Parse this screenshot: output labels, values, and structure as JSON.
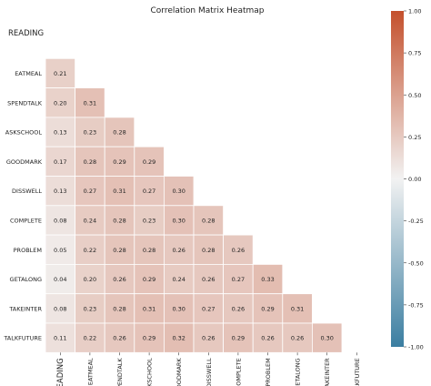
{
  "chart_data": {
    "type": "heatmap",
    "title": "Correlation Matrix Heatmap",
    "row_labels": [
      "READING",
      "EATMEAL",
      "SPENDTALK",
      "ASKSCHOOL",
      "GOODMARK",
      "DISSWELL",
      "COMPLETE",
      "PROBLEM",
      "GETALONG",
      "TAKEINTER",
      "TALKFUTURE"
    ],
    "col_labels": [
      "READING",
      "EATMEAL",
      "SPENDTALK",
      "ASKSCHOOL",
      "GOODMARK",
      "DISSWELL",
      "COMPLETE",
      "PROBLEM",
      "GETALONG",
      "TAKEINTER",
      "TALKFUTURE"
    ],
    "values": [
      [
        null,
        null,
        null,
        null,
        null,
        null,
        null,
        null,
        null,
        null,
        null
      ],
      [
        0.21,
        null,
        null,
        null,
        null,
        null,
        null,
        null,
        null,
        null,
        null
      ],
      [
        0.2,
        0.31,
        null,
        null,
        null,
        null,
        null,
        null,
        null,
        null,
        null
      ],
      [
        0.13,
        0.23,
        0.28,
        null,
        null,
        null,
        null,
        null,
        null,
        null,
        null
      ],
      [
        0.17,
        0.28,
        0.29,
        0.29,
        null,
        null,
        null,
        null,
        null,
        null,
        null
      ],
      [
        0.13,
        0.27,
        0.31,
        0.27,
        0.3,
        null,
        null,
        null,
        null,
        null,
        null
      ],
      [
        0.08,
        0.24,
        0.28,
        0.23,
        0.3,
        0.28,
        null,
        null,
        null,
        null,
        null
      ],
      [
        0.05,
        0.22,
        0.28,
        0.28,
        0.26,
        0.28,
        0.26,
        null,
        null,
        null,
        null
      ],
      [
        0.04,
        0.2,
        0.26,
        0.29,
        0.24,
        0.26,
        0.27,
        0.33,
        null,
        null,
        null
      ],
      [
        0.08,
        0.23,
        0.28,
        0.31,
        0.3,
        0.27,
        0.26,
        0.29,
        0.31,
        null,
        null
      ],
      [
        0.11,
        0.22,
        0.26,
        0.29,
        0.32,
        0.26,
        0.29,
        0.26,
        0.26,
        0.3,
        null
      ]
    ],
    "colorbar": {
      "min": -1.0,
      "max": 1.0,
      "ticks": [
        "1.00",
        "0.75",
        "0.50",
        "0.25",
        "0.00",
        "-0.25",
        "-0.50",
        "-0.75",
        "-1.00"
      ],
      "low_color": "#3b7ea1",
      "mid_color": "#f2f2f2",
      "high_color": "#c4502c"
    }
  }
}
